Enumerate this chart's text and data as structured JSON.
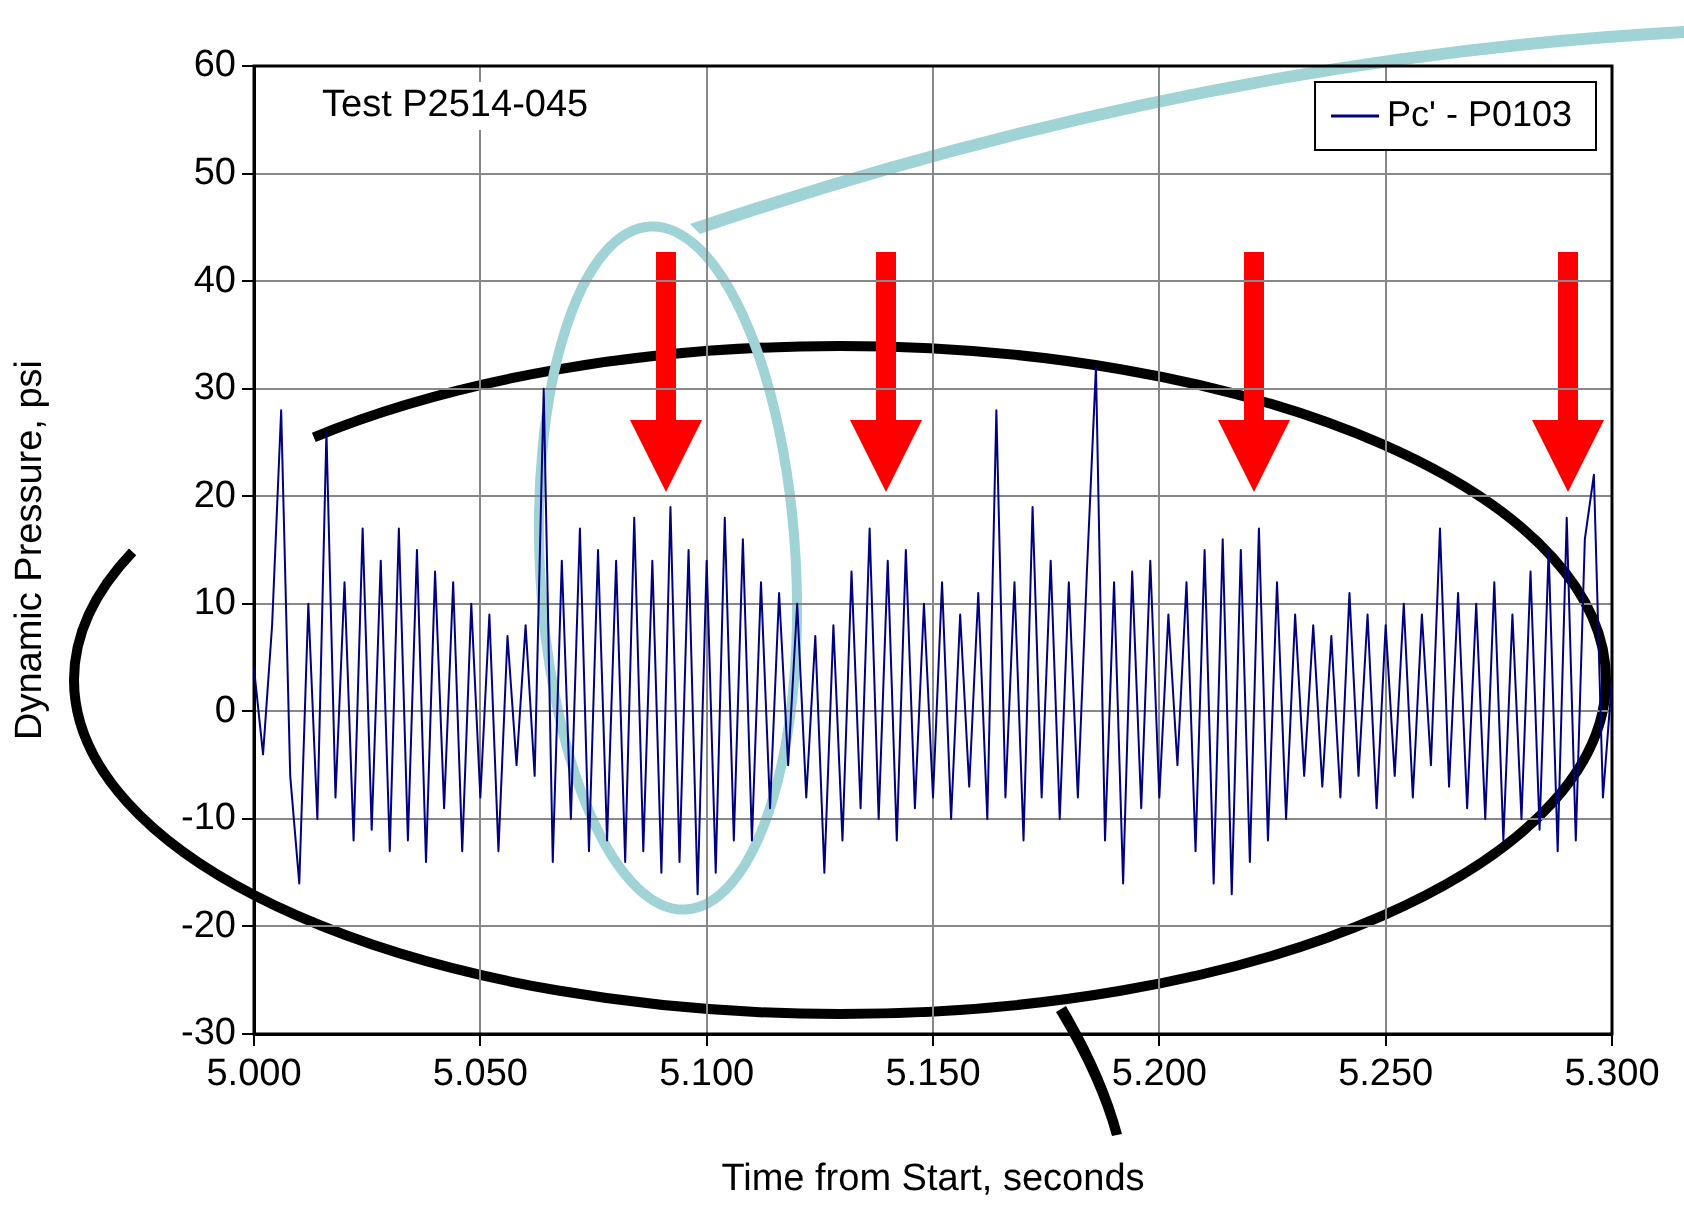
{
  "chart_data": {
    "type": "line",
    "xlabel": "Time from Start, seconds",
    "ylabel": "Dynamic Pressure, psi",
    "annotations": [
      "Test P2514-045"
    ],
    "x": [
      5.0,
      5.002,
      5.004,
      5.006,
      5.008,
      5.01,
      5.012,
      5.014,
      5.016,
      5.018,
      5.02,
      5.022,
      5.024,
      5.026,
      5.028,
      5.03,
      5.032,
      5.034,
      5.036,
      5.038,
      5.04,
      5.042,
      5.044,
      5.046,
      5.048,
      5.05,
      5.052,
      5.054,
      5.056,
      5.058,
      5.06,
      5.062,
      5.064,
      5.066,
      5.068,
      5.07,
      5.072,
      5.074,
      5.076,
      5.078,
      5.08,
      5.082,
      5.084,
      5.086,
      5.088,
      5.09,
      5.092,
      5.094,
      5.096,
      5.098,
      5.1,
      5.102,
      5.104,
      5.106,
      5.108,
      5.11,
      5.112,
      5.114,
      5.116,
      5.118,
      5.12,
      5.122,
      5.124,
      5.126,
      5.128,
      5.13,
      5.132,
      5.134,
      5.136,
      5.138,
      5.14,
      5.142,
      5.144,
      5.146,
      5.148,
      5.15,
      5.152,
      5.154,
      5.156,
      5.158,
      5.16,
      5.162,
      5.164,
      5.166,
      5.168,
      5.17,
      5.172,
      5.174,
      5.176,
      5.178,
      5.18,
      5.182,
      5.184,
      5.186,
      5.188,
      5.19,
      5.192,
      5.194,
      5.196,
      5.198,
      5.2,
      5.202,
      5.204,
      5.206,
      5.208,
      5.21,
      5.212,
      5.214,
      5.216,
      5.218,
      5.22,
      5.222,
      5.224,
      5.226,
      5.228,
      5.23,
      5.232,
      5.234,
      5.236,
      5.238,
      5.24,
      5.242,
      5.244,
      5.246,
      5.248,
      5.25,
      5.252,
      5.254,
      5.256,
      5.258,
      5.26,
      5.262,
      5.264,
      5.266,
      5.268,
      5.27,
      5.272,
      5.274,
      5.276,
      5.278,
      5.28,
      5.282,
      5.284,
      5.286,
      5.288,
      5.29,
      5.292,
      5.294,
      5.296,
      5.298,
      5.3
    ],
    "series": [
      {
        "name": "Pc' - P0103",
        "color": "#000080",
        "values": [
          4,
          -4,
          8,
          28,
          -6,
          -16,
          10,
          -10,
          26,
          -8,
          12,
          -12,
          17,
          -11,
          14,
          -13,
          17,
          -12,
          15,
          -14,
          13,
          -9,
          12,
          -13,
          10,
          -8,
          9,
          -13,
          7,
          -5,
          8,
          -6,
          30,
          -14,
          14,
          -10,
          17,
          -13,
          15,
          -12,
          14,
          -14,
          18,
          -13,
          14,
          -15,
          19,
          -14,
          15,
          -17,
          14,
          -15,
          18,
          -12,
          16,
          -12,
          12,
          -9,
          11,
          -5,
          10,
          -8,
          7,
          -15,
          8,
          -12,
          13,
          -9,
          17,
          -10,
          14,
          -12,
          15,
          -9,
          10,
          -8,
          12,
          -10,
          9,
          -7,
          11,
          -10,
          28,
          -8,
          12,
          -12,
          19,
          -8,
          14,
          -10,
          12,
          -8,
          13,
          32,
          -12,
          12,
          -16,
          13,
          -9,
          14,
          -8,
          9,
          -5,
          12,
          -13,
          15,
          -16,
          16,
          -17,
          15,
          -14,
          17,
          -12,
          12,
          -10,
          9,
          -6,
          8,
          -7,
          7,
          -8,
          11,
          -6,
          9,
          -9,
          8,
          -6,
          10,
          -8,
          9,
          -5,
          17,
          -7,
          11,
          -9,
          10,
          -10,
          12,
          -12,
          9,
          -10,
          13,
          -11,
          15,
          -13,
          18,
          -12,
          16,
          22,
          -8,
          3
        ]
      }
    ],
    "xlim": [
      5.0,
      5.3
    ],
    "xticks": [
      {
        "value": 5.0,
        "label": "5.000"
      },
      {
        "value": 5.05,
        "label": "5.050"
      },
      {
        "value": 5.1,
        "label": "5.100"
      },
      {
        "value": 5.15,
        "label": "5.150"
      },
      {
        "value": 5.2,
        "label": "5.200"
      },
      {
        "value": 5.25,
        "label": "5.250"
      },
      {
        "value": 5.3,
        "label": "5.300"
      }
    ],
    "ylim": [
      -30,
      60
    ],
    "yticks": [
      -30,
      -20,
      -10,
      0,
      10,
      20,
      30,
      40,
      50,
      60
    ],
    "grid": true,
    "legend": "top right",
    "marker": "none",
    "line_style": "solid"
  }
}
